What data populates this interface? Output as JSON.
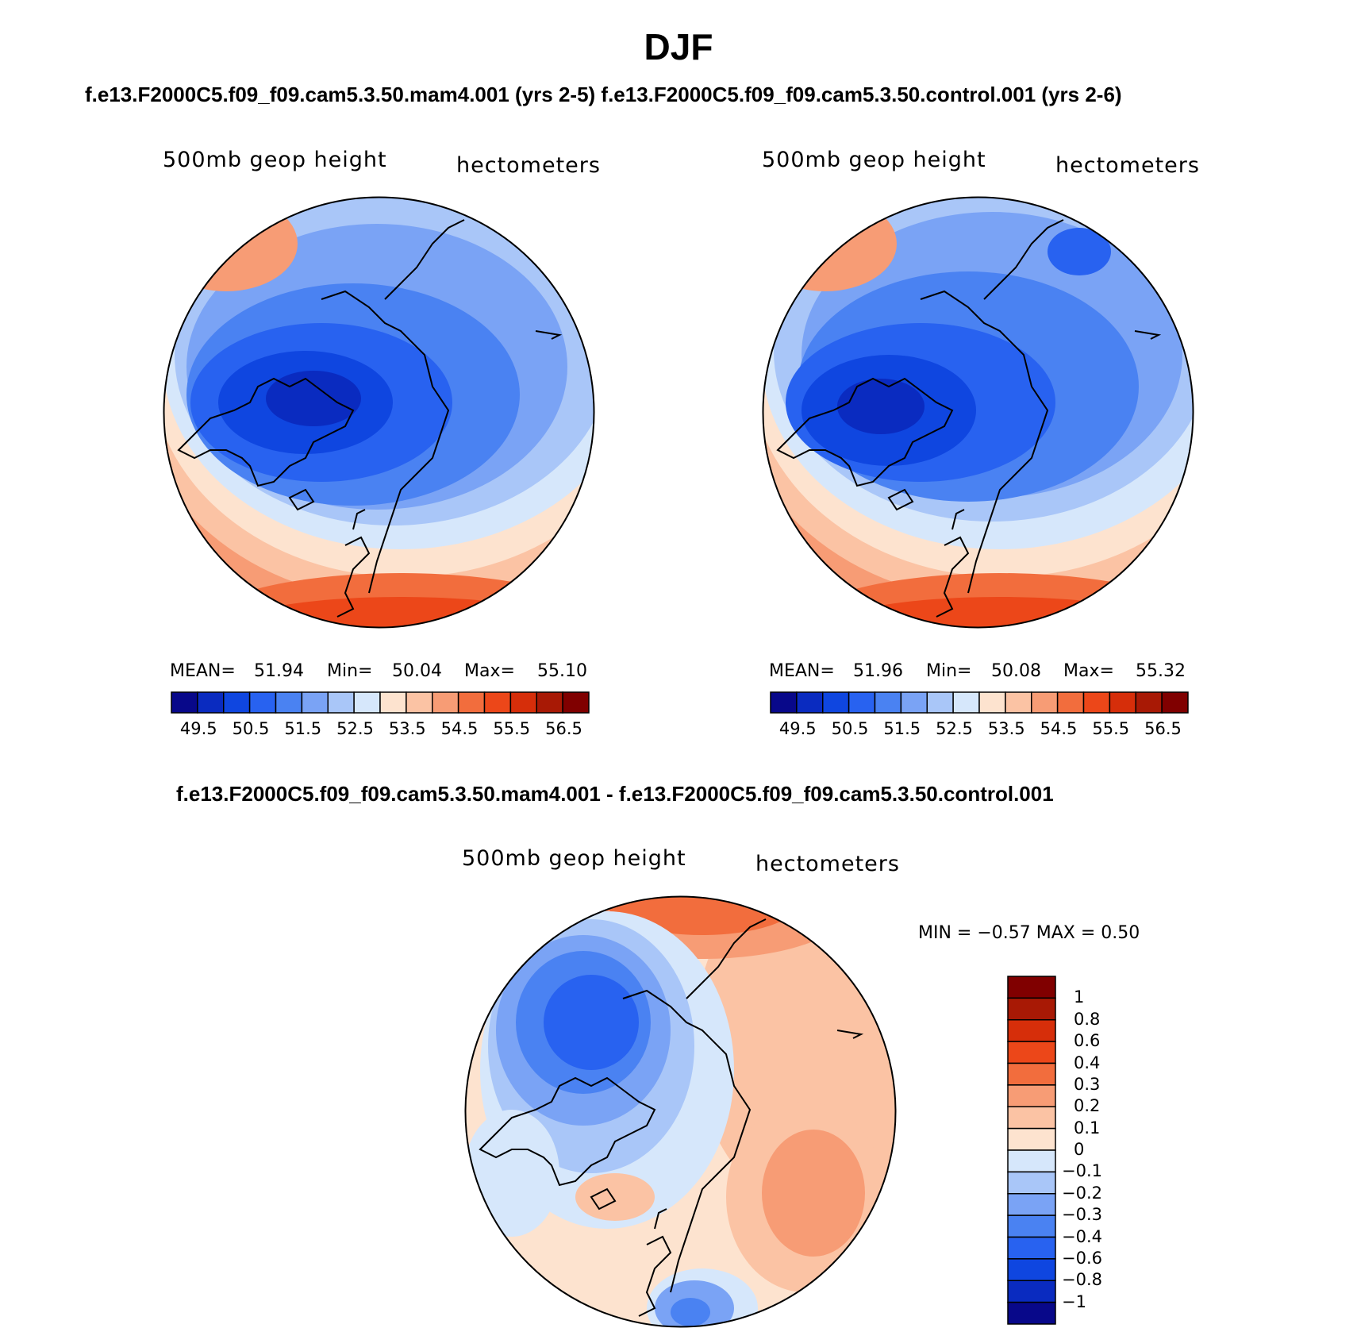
{
  "title": "DJF",
  "subtitle_top": "f.e13.F2000C5.f09_f09.cam5.3.50.mam4.001 (yrs 2-5) f.e13.F2000C5.f09_f09.cam5.3.50.control.001 (yrs 2-6)",
  "subtitle_diff": "f.e13.F2000C5.f09_f09.cam5.3.50.mam4.001 - f.e13.F2000C5.f09_f09.cam5.3.50.control.001",
  "panels": [
    {
      "variable": "500mb  geop  height",
      "units": "hectometers",
      "stats": {
        "mean_label": "MEAN=",
        "mean": "51.94",
        "min_label": "Min=",
        "min": "50.04",
        "max_label": "Max=",
        "max": "55.10"
      }
    },
    {
      "variable": "500mb  geop  height",
      "units": "hectometers",
      "stats": {
        "mean_label": "MEAN=",
        "mean": "51.96",
        "min_label": "Min=",
        "min": "50.08",
        "max_label": "Max=",
        "max": "55.32"
      }
    }
  ],
  "diff_panel": {
    "variable": "500mb  geop  height",
    "units": "hectometers",
    "minmax": "MIN =   −0.57  MAX =     0.50"
  },
  "colorbar_main": {
    "ticks": [
      "49.5",
      "50.5",
      "51.5",
      "52.5",
      "53.5",
      "54.5",
      "55.5",
      "56.5"
    ],
    "colors": [
      "#08088a",
      "#0a2bc0",
      "#0f46e0",
      "#2862f0",
      "#4a82f2",
      "#7aa3f5",
      "#a9c6f8",
      "#d6e7fb",
      "#fde3cf",
      "#fbc3a4",
      "#f79c75",
      "#f26d3d",
      "#ec4719",
      "#d62e0a",
      "#a81905",
      "#800000"
    ]
  },
  "colorbar_diff": {
    "ticks": [
      "1",
      "0.8",
      "0.6",
      "0.4",
      "0.3",
      "0.2",
      "0.1",
      "0",
      "−0.1",
      "−0.2",
      "−0.3",
      "−0.4",
      "−0.6",
      "−0.8",
      "−1"
    ],
    "colors": [
      "#800000",
      "#a81905",
      "#d62e0a",
      "#ec4719",
      "#f26d3d",
      "#f79c75",
      "#fbc3a4",
      "#fde3cf",
      "#d6e7fb",
      "#a9c6f8",
      "#7aa3f5",
      "#4a82f2",
      "#2862f0",
      "#0f46e0",
      "#0a2bc0",
      "#08088a"
    ]
  }
}
